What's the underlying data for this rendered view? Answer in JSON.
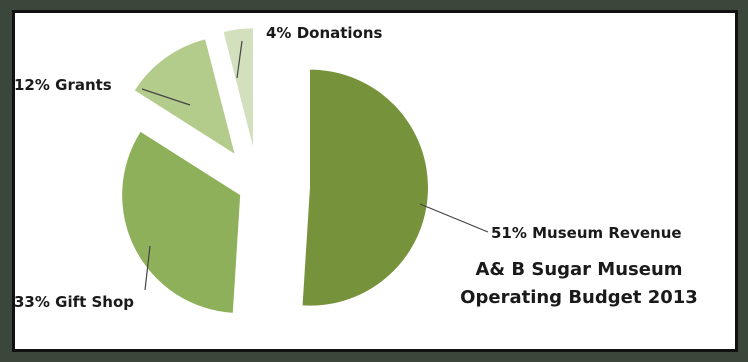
{
  "chart_data": {
    "type": "pie",
    "title_lines": [
      "A& B Sugar Museum",
      "Operating Budget 2013"
    ],
    "slices": [
      {
        "label": "51% Museum Revenue",
        "value": 51,
        "color": "#76933c"
      },
      {
        "label": "33% Gift Shop",
        "value": 33,
        "color": "#8fb05a"
      },
      {
        "label": "12% Grants",
        "value": 12,
        "color": "#b3cc8c"
      },
      {
        "label": "4% Donations",
        "value": 4,
        "color": "#d3e0bd"
      }
    ],
    "exploded": true
  }
}
